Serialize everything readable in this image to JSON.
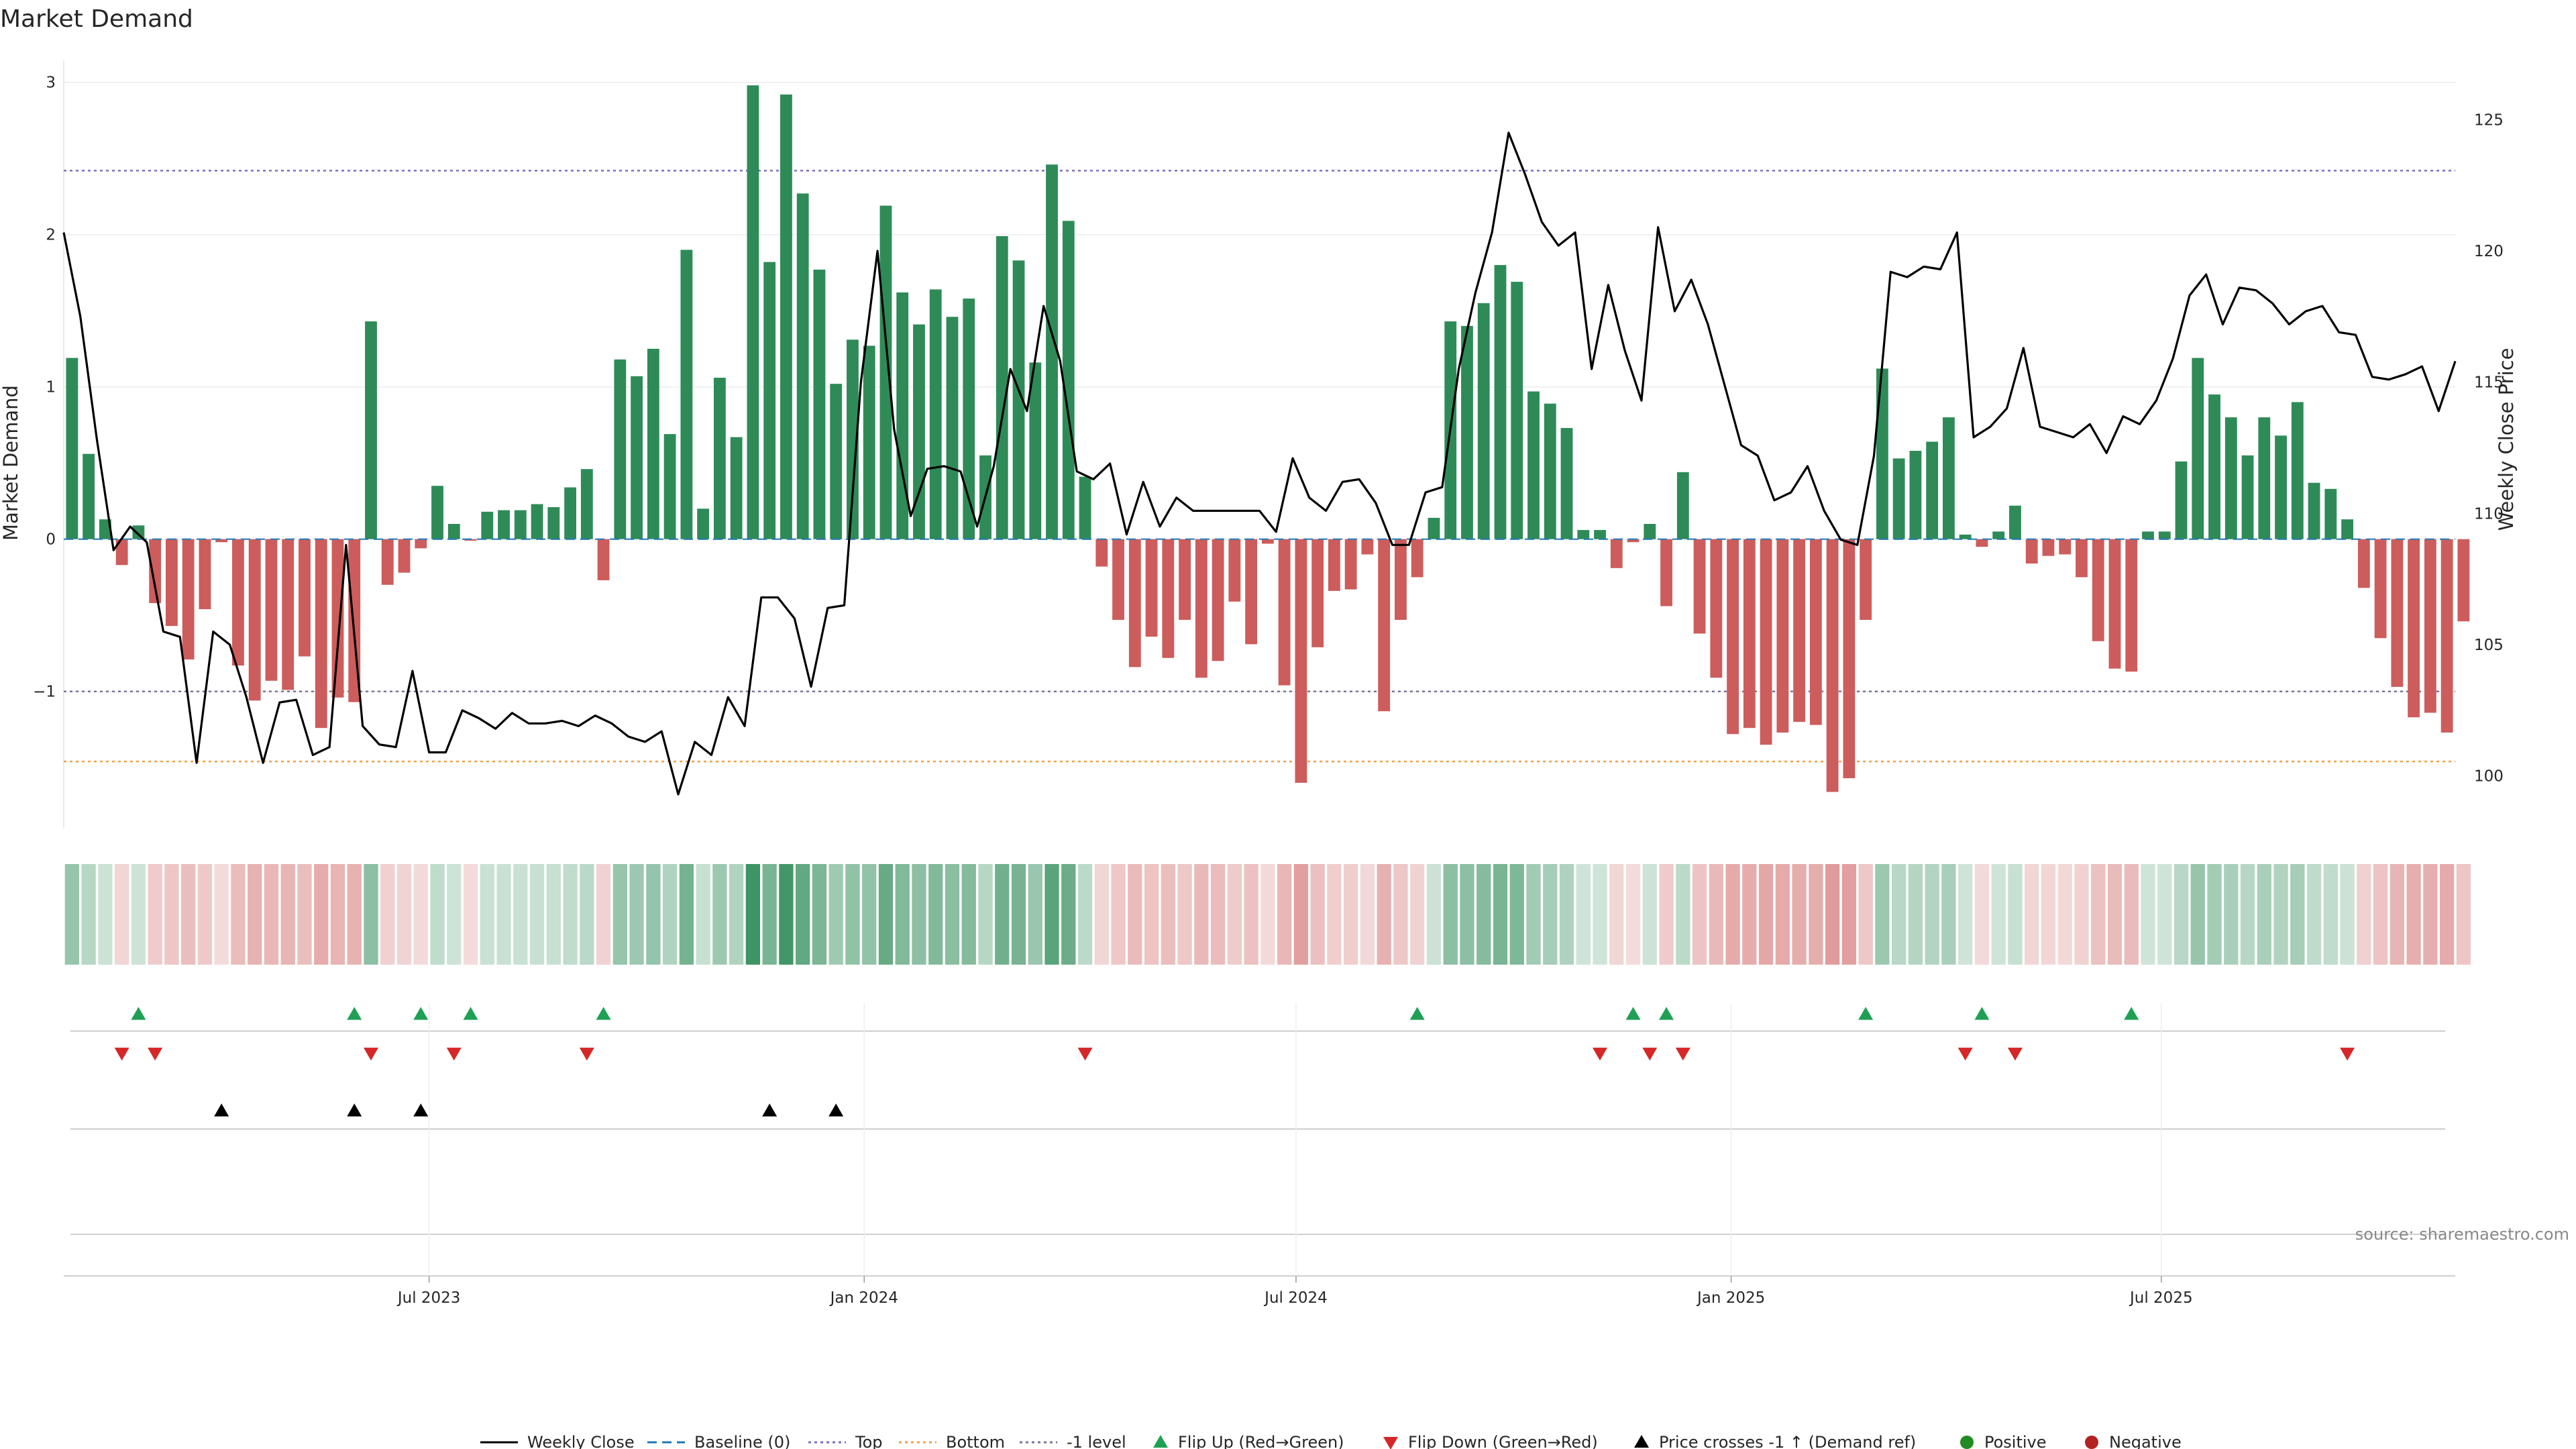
{
  "title": "Market Demand",
  "source_text": "source: sharemaestro.com",
  "colors": {
    "positive": "#2e8b57",
    "negative": "#cd5c5c",
    "price_line": "#000000",
    "top": "#7a6fc4",
    "bottom": "#f0a04b",
    "minus_one": "#777799",
    "baseline": "#1f77b4",
    "flip_up": "#1fa055",
    "flip_down": "#d62728"
  },
  "chart_data": {
    "type": "bar",
    "title": "Market Demand",
    "ylabel": "Market Demand",
    "y2label": "Weekly Close Price",
    "ylim": [
      -1.9,
      3.1
    ],
    "y2lim": [
      98.0,
      127.0
    ],
    "yticks": [
      -1,
      0,
      1,
      2,
      3
    ],
    "yticklabels": [
      "−1",
      "0",
      "1",
      "2",
      "3"
    ],
    "y2ticks": [
      100,
      105,
      110,
      115,
      120,
      125
    ],
    "y2ticklabels": [
      "100",
      "105",
      "110",
      "115",
      "120",
      "125"
    ],
    "xticklabels": [
      "Jul 2023",
      "Jan 2024",
      "Jul 2024",
      "Jan 2025",
      "Jul 2025"
    ],
    "xtick_weeks": [
      21.5,
      47.7,
      73.7,
      99.9,
      125.8
    ],
    "levels": {
      "top": 2.42,
      "bottom": -1.46,
      "minus_one": -1.0
    },
    "weeks": 144,
    "demand": [
      1.19,
      0.56,
      0.13,
      -0.17,
      0.09,
      -0.42,
      -0.57,
      -0.79,
      -0.46,
      -0.02,
      -0.83,
      -1.06,
      -0.93,
      -0.99,
      -0.77,
      -1.24,
      -1.04,
      -1.07,
      1.43,
      -0.3,
      -0.22,
      -0.06,
      0.35,
      0.1,
      -0.01,
      0.18,
      0.19,
      0.19,
      0.23,
      0.21,
      0.34,
      0.46,
      -0.27,
      1.18,
      1.07,
      1.25,
      0.69,
      1.9,
      0.2,
      1.06,
      0.67,
      2.98,
      1.82,
      2.92,
      2.27,
      1.77,
      1.02,
      1.31,
      1.27,
      2.19,
      1.62,
      1.41,
      1.64,
      1.46,
      1.58,
      0.55,
      1.99,
      1.83,
      1.16,
      2.46,
      2.09,
      0.41,
      -0.18,
      -0.53,
      -0.84,
      -0.64,
      -0.78,
      -0.53,
      -0.91,
      -0.8,
      -0.41,
      -0.69,
      -0.03,
      -0.96,
      -1.6,
      -0.71,
      -0.34,
      -0.33,
      -0.1,
      -1.13,
      -0.53,
      -0.25,
      0.14,
      1.43,
      1.4,
      1.55,
      1.8,
      1.69,
      0.97,
      0.89,
      0.73,
      0.06,
      0.06,
      -0.19,
      -0.02,
      0.1,
      -0.44,
      0.44,
      -0.62,
      -0.91,
      -1.28,
      -1.24,
      -1.35,
      -1.27,
      -1.2,
      -1.22,
      -1.66,
      -1.57,
      -0.53,
      1.12,
      0.53,
      0.58,
      0.64,
      0.8,
      0.03,
      -0.05,
      0.05,
      0.22,
      -0.16,
      -0.11,
      -0.1,
      -0.25,
      -0.67,
      -0.85,
      -0.87,
      0.05,
      0.05,
      0.51,
      1.19,
      0.95,
      0.8,
      0.55,
      0.8,
      0.68,
      0.9,
      0.37,
      0.33,
      0.13,
      -0.32,
      -0.65,
      -0.97,
      -1.17,
      -1.14,
      -1.27,
      -0.54
    ],
    "price_weeks": [
      0,
      1,
      2,
      3,
      4,
      5,
      6,
      7,
      8,
      9,
      10,
      11,
      12,
      13,
      14,
      15,
      16,
      17,
      18,
      19,
      20,
      21,
      22,
      23,
      24,
      25,
      26,
      27,
      28,
      29,
      30,
      31,
      32,
      33,
      34,
      35,
      36,
      37,
      38,
      39,
      40,
      41,
      42,
      43,
      44,
      45,
      46,
      47,
      48,
      49,
      50,
      51,
      52,
      53,
      54,
      55,
      56,
      57,
      58,
      59,
      60,
      61,
      62,
      63,
      64,
      65,
      66,
      67,
      68,
      69,
      70,
      71,
      72,
      73,
      74,
      75,
      76,
      77,
      78,
      79,
      80,
      81,
      82,
      83,
      84,
      85,
      86,
      87,
      88,
      89,
      90,
      91,
      92,
      93,
      94,
      95,
      96,
      97,
      98,
      99,
      100,
      101,
      102,
      103,
      104,
      105,
      106,
      107,
      108,
      109,
      110,
      111,
      112,
      113,
      114,
      115,
      116,
      117,
      118,
      119,
      120,
      121,
      122,
      123,
      124,
      125,
      126,
      127,
      128,
      129,
      130,
      131,
      132,
      133,
      134,
      135,
      136,
      137,
      138,
      139,
      140,
      141,
      142,
      143,
      144
    ],
    "price": [
      120.7,
      117.5,
      112.8,
      108.6,
      109.5,
      108.9,
      105.5,
      105.3,
      100.5,
      105.5,
      105.0,
      103.0,
      100.5,
      102.8,
      102.9,
      100.8,
      101.1,
      108.8,
      101.9,
      101.2,
      101.1,
      104.0,
      100.9,
      100.9,
      102.5,
      102.2,
      101.8,
      102.4,
      102.0,
      102.0,
      102.1,
      101.9,
      102.3,
      102.0,
      101.5,
      101.3,
      101.7,
      99.3,
      101.3,
      100.8,
      103.0,
      101.9,
      106.8,
      106.8,
      106.0,
      103.4,
      106.4,
      106.5,
      115.0,
      120.0,
      113.2,
      109.9,
      111.7,
      111.8,
      111.6,
      109.5,
      111.8,
      115.5,
      113.9,
      117.9,
      115.8,
      111.6,
      111.3,
      111.9,
      109.2,
      111.2,
      109.5,
      110.6,
      110.1,
      110.1,
      110.1,
      110.1,
      110.1,
      109.3,
      112.1,
      110.6,
      110.1,
      111.2,
      111.3,
      110.4,
      108.8,
      108.8,
      110.8,
      111.0,
      115.5,
      118.4,
      120.7,
      124.5,
      122.9,
      121.1,
      120.2,
      120.7,
      115.5,
      118.7,
      116.2,
      114.3,
      120.9,
      117.7,
      118.9,
      117.2,
      114.9,
      112.6,
      112.2,
      110.5,
      110.8,
      111.8,
      110.1,
      109.0,
      108.8,
      112.2,
      119.2,
      119.0,
      119.4,
      119.3,
      120.7,
      112.9,
      113.3,
      114.0,
      116.3,
      113.3,
      113.1,
      112.9,
      113.4,
      112.3,
      113.7,
      113.4,
      114.3,
      115.9,
      118.3,
      119.1,
      117.2,
      118.6,
      118.5,
      118.0,
      117.2,
      117.7,
      117.9,
      116.9,
      116.8,
      115.2,
      115.1,
      115.3,
      115.6,
      113.9,
      115.8
    ],
    "series": [
      {
        "name": "Weekly Close",
        "style": "line"
      },
      {
        "name": "Baseline (0)",
        "style": "dashed"
      },
      {
        "name": "Top",
        "style": "dotted"
      },
      {
        "name": "Bottom",
        "style": "dotted"
      },
      {
        "name": "-1 level",
        "style": "dotted"
      },
      {
        "name": "Flip Up (Red→Green)",
        "style": "marker"
      },
      {
        "name": "Flip Down (Green→Red)",
        "style": "marker"
      },
      {
        "name": "Price crosses -1 ↑ (Demand ref)",
        "style": "marker"
      },
      {
        "name": "Positive",
        "style": "dot"
      },
      {
        "name": "Negative",
        "style": "dot"
      }
    ],
    "events": {
      "flip_up": [
        4,
        17,
        21,
        24,
        32,
        81,
        94,
        96,
        108,
        115,
        124
      ],
      "flip_down": [
        3,
        5,
        18,
        23,
        31,
        61,
        92,
        95,
        97,
        114,
        117,
        137
      ],
      "price_cross": [
        9,
        17,
        21,
        42,
        46
      ]
    }
  }
}
